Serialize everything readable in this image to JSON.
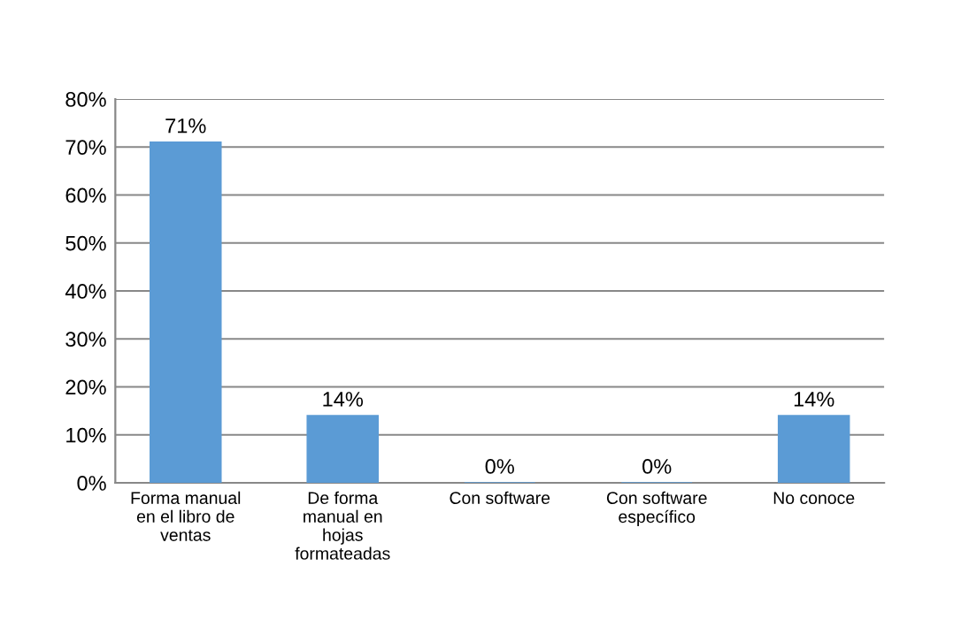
{
  "chart_data": {
    "type": "bar",
    "categories": [
      "Forma manual en el libro de ventas",
      "De forma manual en hojas formateadas",
      "Con software",
      "Con software específico",
      "No conoce"
    ],
    "values": [
      71,
      14,
      0,
      0,
      14
    ],
    "color": "#5b9bd5",
    "value_labels": [
      "71%",
      "14%",
      "0%",
      "0%",
      "14%"
    ],
    "ylim": [
      0,
      80
    ],
    "yticks": [
      {
        "value": 0,
        "label": "0%"
      },
      {
        "value": 10,
        "label": "10%"
      },
      {
        "value": 20,
        "label": "20%"
      },
      {
        "value": 30,
        "label": "30%"
      },
      {
        "value": 40,
        "label": "40%"
      },
      {
        "value": 50,
        "label": "50%"
      },
      {
        "value": 60,
        "label": "60%"
      },
      {
        "value": 70,
        "label": "70%"
      },
      {
        "value": 80,
        "label": "80%"
      }
    ],
    "grid": "y"
  }
}
